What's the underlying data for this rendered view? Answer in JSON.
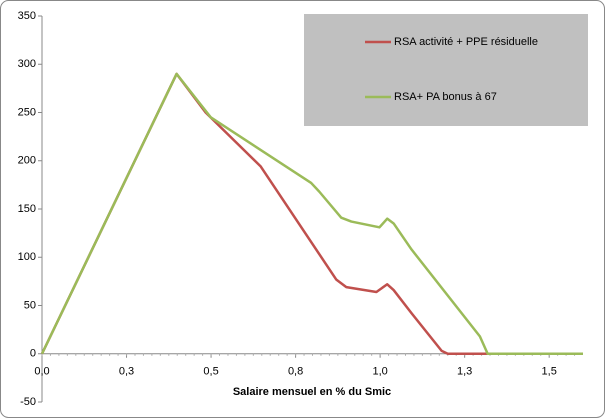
{
  "chart_data": {
    "type": "line",
    "x_label": "Salaire mensuel en % du Smic",
    "xlim": [
      0,
      1.6
    ],
    "xticks": [
      {
        "value": 0,
        "label": "0,0"
      },
      {
        "value": 0.25,
        "label": "0,3"
      },
      {
        "value": 0.5,
        "label": "0,5"
      },
      {
        "value": 0.75,
        "label": "0,8"
      },
      {
        "value": 1.0,
        "label": "1,0"
      },
      {
        "value": 1.25,
        "label": "1,3"
      },
      {
        "value": 1.5,
        "label": "1,5"
      }
    ],
    "ylim": [
      -50,
      350
    ],
    "yticks": [
      -50,
      0,
      50,
      100,
      150,
      200,
      250,
      300,
      350
    ],
    "grid": false,
    "legend": "top-right",
    "series": [
      {
        "name": "RSA activité + PPE résiduelle",
        "color": "#c0504d",
        "x": [
          0,
          0.398,
          0.484,
          0.647,
          0.87,
          0.9,
          0.989,
          1.021,
          1.04,
          1.093,
          1.182,
          1.2,
          1.6
        ],
        "values": [
          0,
          290,
          250,
          194,
          77,
          69,
          64,
          72,
          66,
          42,
          3,
          0,
          0
        ]
      },
      {
        "name": "RSA+ PA bonus à 67",
        "color": "#9bbb59",
        "x": [
          0,
          0.398,
          0.499,
          0.796,
          0.82,
          0.885,
          0.915,
          0.998,
          1.021,
          1.04,
          1.093,
          1.295,
          1.318,
          1.6
        ],
        "values": [
          0,
          290,
          245,
          177,
          168,
          141,
          137,
          131,
          140,
          135,
          108,
          18,
          0,
          0
        ]
      }
    ]
  }
}
